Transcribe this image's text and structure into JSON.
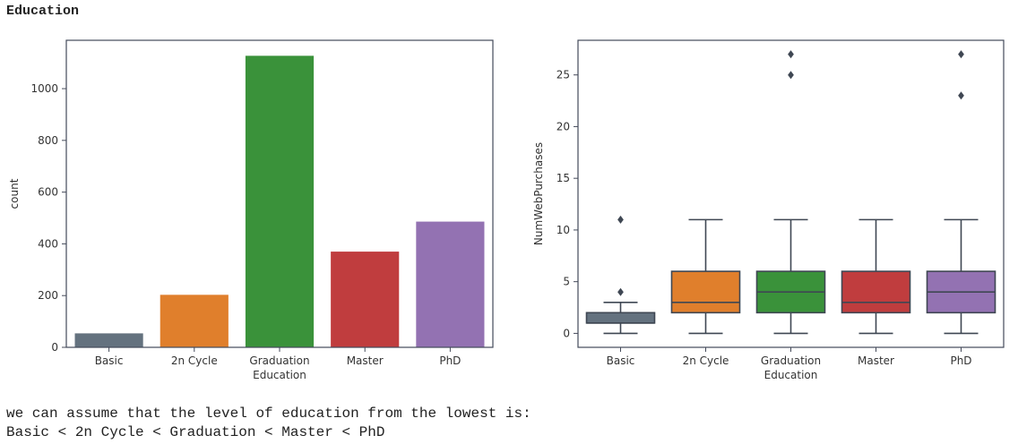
{
  "heading": "Education",
  "notes": [
    "we can assume that the level of education from the lowest is:",
    "Basic < 2n Cycle < Graduation < Master < PhD"
  ],
  "palette": [
    "#64727f",
    "#e07f2c",
    "#3a923a",
    "#c03d3e",
    "#9372b2"
  ],
  "chart_data": [
    {
      "type": "bar",
      "categories": [
        "Basic",
        "2n Cycle",
        "Graduation",
        "Master",
        "PhD"
      ],
      "values": [
        54,
        203,
        1127,
        370,
        486
      ],
      "xlabel": "Education",
      "ylabel": "count",
      "ylim": [
        0,
        1187
      ],
      "yticks": [
        0,
        200,
        400,
        600,
        800,
        1000
      ],
      "grid": false
    },
    {
      "type": "box",
      "categories": [
        "Basic",
        "2n Cycle",
        "Graduation",
        "Master",
        "PhD"
      ],
      "xlabel": "Education",
      "ylabel": "NumWebPurchases",
      "ylim": [
        -1.35,
        28.35
      ],
      "yticks": [
        0,
        5,
        10,
        15,
        20,
        25
      ],
      "grid": false,
      "boxes": [
        {
          "whisker_low": 0,
          "q1": 1,
          "median": 1,
          "q3": 2,
          "whisker_high": 3,
          "outliers": [
            4,
            11
          ]
        },
        {
          "whisker_low": 0,
          "q1": 2,
          "median": 3,
          "q3": 6,
          "whisker_high": 11,
          "outliers": []
        },
        {
          "whisker_low": 0,
          "q1": 2,
          "median": 4,
          "q3": 6,
          "whisker_high": 11,
          "outliers": [
            25,
            27
          ]
        },
        {
          "whisker_low": 0,
          "q1": 2,
          "median": 3,
          "q3": 6,
          "whisker_high": 11,
          "outliers": []
        },
        {
          "whisker_low": 0,
          "q1": 2,
          "median": 4,
          "q3": 6,
          "whisker_high": 11,
          "outliers": [
            23,
            27
          ]
        }
      ]
    }
  ]
}
